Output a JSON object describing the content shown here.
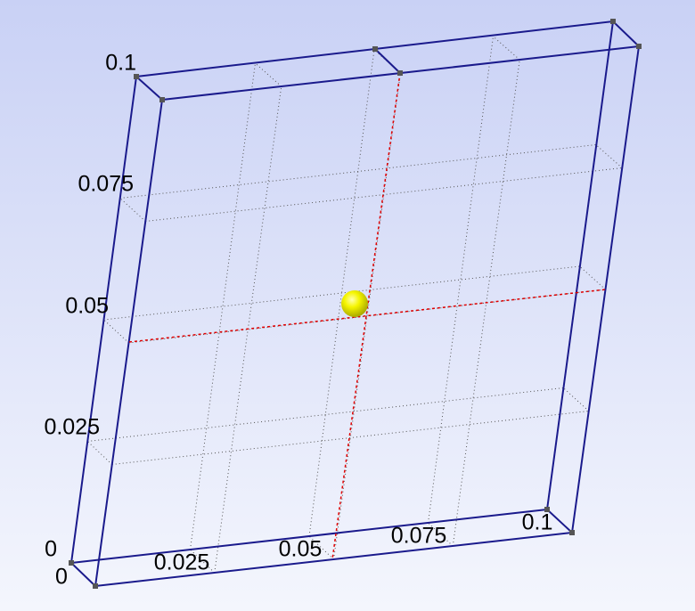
{
  "y_axis": {
    "ticks": [
      0.1,
      0.075,
      0.05,
      0.025,
      0
    ]
  },
  "x_axis": {
    "ticks": [
      0,
      0.025,
      0.05,
      0.075,
      0.1
    ]
  }
}
